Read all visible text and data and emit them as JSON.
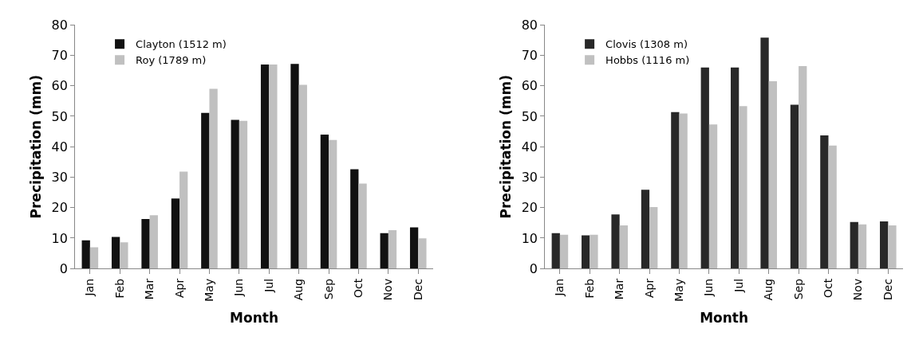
{
  "chart_data": [
    {
      "type": "bar",
      "xlabel": "Month",
      "ylabel": "Precipitation (mm)",
      "categories": [
        "Jan",
        "Feb",
        "Mar",
        "Apr",
        "May",
        "Jun",
        "Jul",
        "Aug",
        "Sep",
        "Oct",
        "Nov",
        "Dec"
      ],
      "series": [
        {
          "name": "Clayton (1512 m)",
          "color": "#111111",
          "values": [
            9.3,
            10.4,
            16.3,
            23,
            51.1,
            48.8,
            67,
            67.2,
            44,
            32.6,
            11.6,
            13.5
          ]
        },
        {
          "name": "Roy (1789 m)",
          "color": "#c0c0c0",
          "values": [
            7,
            8.6,
            17.5,
            31.8,
            59,
            48.5,
            67,
            60.3,
            42.2,
            27.9,
            12.6,
            9.9
          ]
        }
      ],
      "ylim": [
        0,
        80
      ],
      "yticks": [
        0,
        10,
        20,
        30,
        40,
        50,
        60,
        70,
        80
      ],
      "legend": "top left"
    },
    {
      "type": "bar",
      "xlabel": "Month",
      "ylabel": "Precipitation (mm)",
      "categories": [
        "Jan",
        "Feb",
        "Mar",
        "Apr",
        "May",
        "Jun",
        "Jul",
        "Aug",
        "Sep",
        "Oct",
        "Nov",
        "Dec"
      ],
      "series": [
        {
          "name": "Clovis (1308 m)",
          "color": "#282828",
          "values": [
            11.6,
            10.9,
            17.8,
            25.9,
            51.4,
            66,
            66,
            75.8,
            53.8,
            43.7,
            15.3,
            15.5
          ]
        },
        {
          "name": "Hobbs (1116 m)",
          "color": "#c0c0c0",
          "values": [
            11.1,
            11.1,
            14.2,
            20.2,
            50.9,
            47.3,
            53.3,
            61.5,
            66.5,
            40.4,
            14.5,
            14.2
          ]
        }
      ],
      "ylim": [
        0,
        80
      ],
      "yticks": [
        0,
        10,
        20,
        30,
        40,
        50,
        60,
        70,
        80
      ],
      "legend": "top left"
    }
  ]
}
